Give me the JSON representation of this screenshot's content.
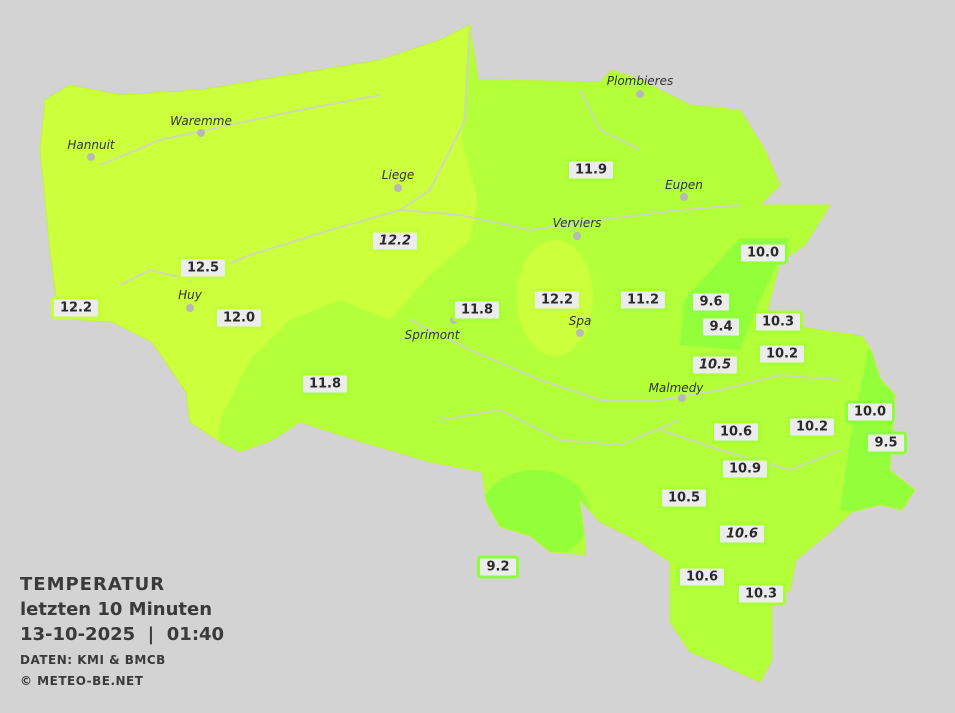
{
  "legend": {
    "title": "TEMPERATUR",
    "subtitle": "letzten 10 Minuten",
    "datetime": "13-10-2025  |  01:40",
    "source": "DATEN: KMI & BMCB",
    "copyright": "© METEO-BE.NET"
  },
  "colors": {
    "background": "#d3d3d3",
    "zone_12_plus": "#ccff3c",
    "zone_10_12": "#b2ff3a",
    "zone_below_10": "#92ff3a",
    "label_fill": "#ececec"
  },
  "cities": [
    "Hannuit",
    "Waremme",
    "Liege",
    "Huy",
    "Sprimont",
    "Verviers",
    "Spa",
    "Eupen",
    "Plombieres",
    "Malmedy"
  ],
  "stations": [
    {
      "value": "12.2",
      "italic": false
    },
    {
      "value": "12.5",
      "italic": false
    },
    {
      "value": "12.0",
      "italic": false
    },
    {
      "value": "12.2",
      "italic": true
    },
    {
      "value": "11.8",
      "italic": false
    },
    {
      "value": "11.8",
      "italic": false
    },
    {
      "value": "12.2",
      "italic": false
    },
    {
      "value": "11.9",
      "italic": false
    },
    {
      "value": "11.2",
      "italic": false
    },
    {
      "value": "10.0",
      "italic": false
    },
    {
      "value": "9.6",
      "italic": false
    },
    {
      "value": "9.4",
      "italic": false
    },
    {
      "value": "10.3",
      "italic": false
    },
    {
      "value": "10.2",
      "italic": false
    },
    {
      "value": "10.5",
      "italic": true
    },
    {
      "value": "10.0",
      "italic": false
    },
    {
      "value": "10.2",
      "italic": false
    },
    {
      "value": "9.5",
      "italic": false
    },
    {
      "value": "10.6",
      "italic": false
    },
    {
      "value": "10.9",
      "italic": false
    },
    {
      "value": "10.5",
      "italic": false
    },
    {
      "value": "10.6",
      "italic": true
    },
    {
      "value": "10.6",
      "italic": false
    },
    {
      "value": "10.3",
      "italic": false
    },
    {
      "value": "9.2",
      "italic": false
    }
  ]
}
